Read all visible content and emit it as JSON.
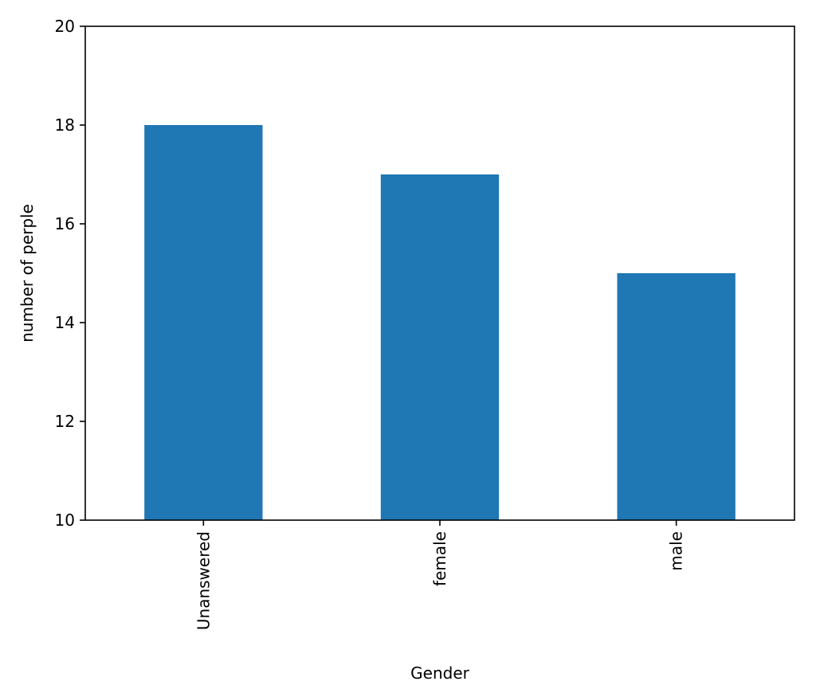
{
  "chart_data": {
    "type": "bar",
    "title": "",
    "xlabel": "Gender",
    "ylabel": "number of perple",
    "categories": [
      "Unanswered",
      "female",
      "male"
    ],
    "values": [
      18,
      17,
      15
    ],
    "ylim": [
      10,
      20
    ],
    "yticks": [
      10,
      12,
      14,
      16,
      18,
      20
    ],
    "xtick_rotation": "vertical",
    "grid": false,
    "legend": "none",
    "bar_color": "#1f77b4"
  }
}
